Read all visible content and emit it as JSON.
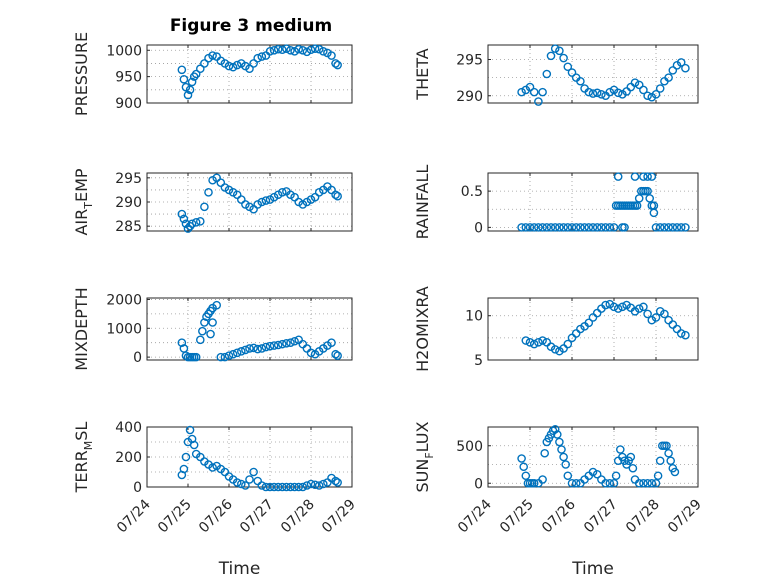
{
  "figure_title": "Figure 3 medium",
  "colors": {
    "marker": "#0072BD",
    "axis": "#262626",
    "grid": "#9a9a9a"
  },
  "chart_data": [
    {
      "type": "scatter",
      "label_main": "PRESSURE",
      "label_sub": "",
      "xlabel": "",
      "xlim": [
        0,
        5
      ],
      "ylim": [
        900,
        1010
      ],
      "yticks": [
        900,
        950,
        1000
      ],
      "xticks": [
        0,
        1,
        2,
        3,
        4,
        5
      ],
      "xticklabels": [
        "07/24",
        "07/25",
        "07/26",
        "07/27",
        "07/28",
        "07/29"
      ],
      "x": [
        0.85,
        0.9,
        0.95,
        1.0,
        1.05,
        1.1,
        1.15,
        1.2,
        1.3,
        1.4,
        1.5,
        1.6,
        1.7,
        1.8,
        1.9,
        2.0,
        2.1,
        2.2,
        2.3,
        2.4,
        2.5,
        2.6,
        2.7,
        2.8,
        2.9,
        3.0,
        3.1,
        3.2,
        3.3,
        3.4,
        3.5,
        3.6,
        3.7,
        3.8,
        3.9,
        4.0,
        4.1,
        4.2,
        4.3,
        4.4,
        4.5,
        4.6,
        4.65
      ],
      "y": [
        963,
        945,
        930,
        915,
        925,
        940,
        950,
        955,
        965,
        975,
        985,
        990,
        988,
        980,
        975,
        970,
        968,
        972,
        975,
        970,
        965,
        975,
        985,
        988,
        990,
        998,
        1000,
        1002,
        1001,
        1003,
        1000,
        998,
        1002,
        1000,
        997,
        1001,
        1003,
        1002,
        998,
        995,
        990,
        975,
        972
      ]
    },
    {
      "type": "scatter",
      "label_main": "THETA",
      "label_sub": "",
      "xlabel": "",
      "xlim": [
        0,
        5
      ],
      "ylim": [
        289,
        297
      ],
      "yticks": [
        290,
        295
      ],
      "xticks": [
        0,
        1,
        2,
        3,
        4,
        5
      ],
      "xticklabels": [
        "07/24",
        "07/25",
        "07/26",
        "07/27",
        "07/28",
        "07/29"
      ],
      "x": [
        0.8,
        0.9,
        1.0,
        1.1,
        1.2,
        1.3,
        1.4,
        1.5,
        1.6,
        1.7,
        1.8,
        1.9,
        2.0,
        2.1,
        2.2,
        2.3,
        2.4,
        2.5,
        2.6,
        2.7,
        2.8,
        2.9,
        3.0,
        3.1,
        3.2,
        3.3,
        3.4,
        3.5,
        3.6,
        3.7,
        3.8,
        3.9,
        4.0,
        4.1,
        4.2,
        4.3,
        4.4,
        4.5,
        4.6,
        4.7
      ],
      "y": [
        290.5,
        290.8,
        291.2,
        290.5,
        289.2,
        290.5,
        293.0,
        295.5,
        296.5,
        296.2,
        295.2,
        294.0,
        293.2,
        292.5,
        292.0,
        291.0,
        290.5,
        290.3,
        290.4,
        290.2,
        290.0,
        290.5,
        290.8,
        290.4,
        290.2,
        290.6,
        291.2,
        291.8,
        291.5,
        290.8,
        290.0,
        289.8,
        290.2,
        291.0,
        292.0,
        292.5,
        293.5,
        294.2,
        294.6,
        293.8
      ]
    },
    {
      "type": "scatter",
      "label_main": "AIR",
      "label_sub": "T",
      "label_tail": "EMP",
      "xlabel": "",
      "xlim": [
        0,
        5
      ],
      "ylim": [
        284,
        296
      ],
      "yticks": [
        285,
        290,
        295
      ],
      "xticks": [
        0,
        1,
        2,
        3,
        4,
        5
      ],
      "xticklabels": [
        "07/24",
        "07/25",
        "07/26",
        "07/27",
        "07/28",
        "07/29"
      ],
      "x": [
        0.85,
        0.9,
        0.95,
        1.0,
        1.05,
        1.1,
        1.2,
        1.3,
        1.4,
        1.5,
        1.6,
        1.7,
        1.8,
        1.9,
        2.0,
        2.1,
        2.2,
        2.3,
        2.4,
        2.5,
        2.6,
        2.7,
        2.8,
        2.9,
        3.0,
        3.1,
        3.2,
        3.3,
        3.4,
        3.5,
        3.6,
        3.7,
        3.8,
        3.9,
        4.0,
        4.1,
        4.2,
        4.3,
        4.4,
        4.5,
        4.6,
        4.65
      ],
      "y": [
        287.5,
        286.5,
        285.5,
        284.5,
        285.0,
        285.5,
        285.8,
        286.0,
        289.0,
        292.0,
        294.5,
        295.0,
        294.0,
        293.0,
        292.5,
        292.0,
        291.5,
        290.5,
        289.5,
        289.0,
        288.5,
        289.5,
        290.0,
        290.3,
        290.5,
        291.0,
        291.5,
        292.0,
        292.2,
        291.5,
        291.0,
        290.0,
        289.5,
        290.0,
        290.5,
        291.0,
        292.0,
        292.5,
        293.2,
        292.5,
        291.5,
        291.2
      ]
    },
    {
      "type": "scatter",
      "label_main": "RAINFALL",
      "label_sub": "",
      "xlabel": "",
      "xlim": [
        0,
        5
      ],
      "ylim": [
        -0.05,
        0.75
      ],
      "yticks": [
        0,
        0.5
      ],
      "xticks": [
        0,
        1,
        2,
        3,
        4,
        5
      ],
      "xticklabels": [
        "07/24",
        "07/25",
        "07/26",
        "07/27",
        "07/28",
        "07/29"
      ],
      "x": [
        0.8,
        0.9,
        1.0,
        1.1,
        1.2,
        1.3,
        1.4,
        1.5,
        1.6,
        1.7,
        1.8,
        1.9,
        2.0,
        2.1,
        2.2,
        2.3,
        2.4,
        2.5,
        2.6,
        2.7,
        2.8,
        2.9,
        3.0,
        3.05,
        3.1,
        3.15,
        3.2,
        3.25,
        3.3,
        3.35,
        3.4,
        3.45,
        3.5,
        3.55,
        3.6,
        3.65,
        3.7,
        3.75,
        3.8,
        3.85,
        3.9,
        3.95,
        4.0,
        4.1,
        4.2,
        4.3,
        4.4,
        4.5,
        4.6,
        4.7,
        3.1,
        3.5,
        3.7,
        3.8,
        3.9,
        3.95,
        3.2,
        3.25
      ],
      "y": [
        0,
        0,
        0,
        0,
        0,
        0,
        0,
        0,
        0,
        0,
        0,
        0,
        0,
        0,
        0,
        0,
        0,
        0,
        0,
        0,
        0,
        0,
        0,
        0.3,
        0.3,
        0.3,
        0.3,
        0.3,
        0.3,
        0.3,
        0.3,
        0.3,
        0.3,
        0.3,
        0.4,
        0.5,
        0.5,
        0.5,
        0.5,
        0.4,
        0.3,
        0.2,
        0,
        0,
        0,
        0,
        0,
        0,
        0,
        0,
        0.7,
        0.7,
        0.7,
        0.7,
        0.7,
        0.3,
        0,
        0
      ]
    },
    {
      "type": "scatter",
      "label_main": "MIXDEPTH",
      "label_sub": "",
      "xlabel": "",
      "xlim": [
        0,
        5
      ],
      "ylim": [
        -100,
        2050
      ],
      "yticks": [
        0,
        1000,
        2000
      ],
      "xticks": [
        0,
        1,
        2,
        3,
        4,
        5
      ],
      "xticklabels": [
        "07/24",
        "07/25",
        "07/26",
        "07/27",
        "07/28",
        "07/29"
      ],
      "x": [
        0.85,
        0.9,
        0.95,
        1.0,
        1.05,
        1.1,
        1.15,
        1.2,
        1.3,
        1.35,
        1.4,
        1.45,
        1.5,
        1.55,
        1.6,
        1.7,
        1.6,
        1.55,
        1.8,
        1.9,
        2.0,
        2.1,
        2.2,
        2.3,
        2.4,
        2.5,
        2.6,
        2.7,
        2.8,
        2.9,
        3.0,
        3.1,
        3.2,
        3.3,
        3.4,
        3.5,
        3.6,
        3.7,
        3.8,
        3.9,
        4.0,
        4.1,
        4.2,
        4.3,
        4.4,
        4.5,
        4.6,
        4.65
      ],
      "y": [
        500,
        300,
        50,
        0,
        0,
        0,
        0,
        0,
        600,
        900,
        1200,
        1400,
        1500,
        1600,
        1700,
        1800,
        1200,
        800,
        0,
        0,
        50,
        100,
        150,
        200,
        250,
        300,
        320,
        280,
        300,
        350,
        380,
        400,
        420,
        450,
        480,
        500,
        550,
        600,
        450,
        300,
        150,
        100,
        200,
        300,
        400,
        500,
        100,
        50
      ]
    },
    {
      "type": "scatter",
      "label_main": "H2OMIXRA",
      "label_sub": "",
      "xlabel": "",
      "xlim": [
        0,
        5
      ],
      "ylim": [
        5,
        12
      ],
      "yticks": [
        5,
        10
      ],
      "xticks": [
        0,
        1,
        2,
        3,
        4,
        5
      ],
      "xticklabels": [
        "07/24",
        "07/25",
        "07/26",
        "07/27",
        "07/28",
        "07/29"
      ],
      "x": [
        0.9,
        1.0,
        1.1,
        1.2,
        1.3,
        1.4,
        1.5,
        1.6,
        1.7,
        1.8,
        1.9,
        2.0,
        2.1,
        2.2,
        2.3,
        2.4,
        2.5,
        2.6,
        2.7,
        2.8,
        2.9,
        3.0,
        3.1,
        3.2,
        3.3,
        3.4,
        3.5,
        3.6,
        3.7,
        3.8,
        3.9,
        4.0,
        4.1,
        4.2,
        4.3,
        4.4,
        4.5,
        4.6,
        4.7
      ],
      "y": [
        7.2,
        7.0,
        6.8,
        7.0,
        7.2,
        7.0,
        6.5,
        6.2,
        6.0,
        6.3,
        6.8,
        7.5,
        8.0,
        8.5,
        8.8,
        9.2,
        9.8,
        10.3,
        10.8,
        11.2,
        11.3,
        11.0,
        10.8,
        11.0,
        11.2,
        10.9,
        10.5,
        10.8,
        11.0,
        10.2,
        9.5,
        9.8,
        10.5,
        10.2,
        9.5,
        9.0,
        8.5,
        8.0,
        7.8
      ]
    },
    {
      "type": "scatter",
      "label_main": "TERR",
      "label_sub": "M",
      "label_tail": "SL",
      "xlabel": "Time",
      "xlim": [
        0,
        5
      ],
      "ylim": [
        0,
        400
      ],
      "yticks": [
        0,
        200,
        400
      ],
      "xticks": [
        0,
        1,
        2,
        3,
        4,
        5
      ],
      "xticklabels": [
        "07/24",
        "07/25",
        "07/26",
        "07/27",
        "07/28",
        "07/29"
      ],
      "x": [
        0.85,
        0.9,
        0.95,
        1.0,
        1.05,
        1.1,
        1.15,
        1.2,
        1.3,
        1.4,
        1.5,
        1.6,
        1.7,
        1.8,
        1.9,
        2.0,
        2.1,
        2.2,
        2.3,
        2.4,
        2.5,
        2.6,
        2.7,
        2.8,
        2.9,
        3.0,
        3.1,
        3.2,
        3.3,
        3.4,
        3.5,
        3.6,
        3.7,
        3.8,
        3.9,
        4.0,
        4.1,
        4.2,
        4.3,
        4.4,
        4.5,
        4.6,
        4.65
      ],
      "y": [
        80,
        120,
        200,
        300,
        380,
        320,
        280,
        220,
        200,
        170,
        150,
        130,
        140,
        120,
        100,
        70,
        50,
        30,
        20,
        10,
        50,
        100,
        40,
        10,
        0,
        0,
        0,
        0,
        0,
        0,
        0,
        0,
        0,
        0,
        10,
        20,
        15,
        10,
        20,
        30,
        60,
        40,
        30
      ]
    },
    {
      "type": "scatter",
      "label_main": "SUN",
      "label_sub": "F",
      "label_tail": "LUX",
      "xlabel": "Time",
      "xlim": [
        0,
        5
      ],
      "ylim": [
        -50,
        750
      ],
      "yticks": [
        0,
        500
      ],
      "xticks": [
        0,
        1,
        2,
        3,
        4,
        5
      ],
      "xticklabels": [
        "07/24",
        "07/25",
        "07/26",
        "07/27",
        "07/28",
        "07/29"
      ],
      "x": [
        0.8,
        0.85,
        0.9,
        0.95,
        1.0,
        1.05,
        1.1,
        1.2,
        1.3,
        1.35,
        1.4,
        1.45,
        1.5,
        1.55,
        1.6,
        1.65,
        1.7,
        1.75,
        1.8,
        1.85,
        1.9,
        2.0,
        2.1,
        2.2,
        2.3,
        2.4,
        2.5,
        2.6,
        2.7,
        2.8,
        2.9,
        3.0,
        3.05,
        3.1,
        3.15,
        3.2,
        3.25,
        3.3,
        3.35,
        3.4,
        3.45,
        3.5,
        3.6,
        3.7,
        3.8,
        3.9,
        4.0,
        4.05,
        4.1,
        4.15,
        4.2,
        4.25,
        4.3,
        4.35,
        4.4,
        4.45
      ],
      "y": [
        330,
        220,
        100,
        0,
        0,
        0,
        0,
        0,
        50,
        400,
        550,
        600,
        650,
        700,
        720,
        650,
        550,
        450,
        350,
        250,
        100,
        0,
        0,
        0,
        50,
        100,
        150,
        120,
        50,
        0,
        0,
        0,
        100,
        300,
        450,
        350,
        300,
        250,
        300,
        350,
        200,
        50,
        0,
        0,
        0,
        0,
        0,
        100,
        300,
        500,
        500,
        500,
        400,
        300,
        200,
        150
      ]
    }
  ]
}
